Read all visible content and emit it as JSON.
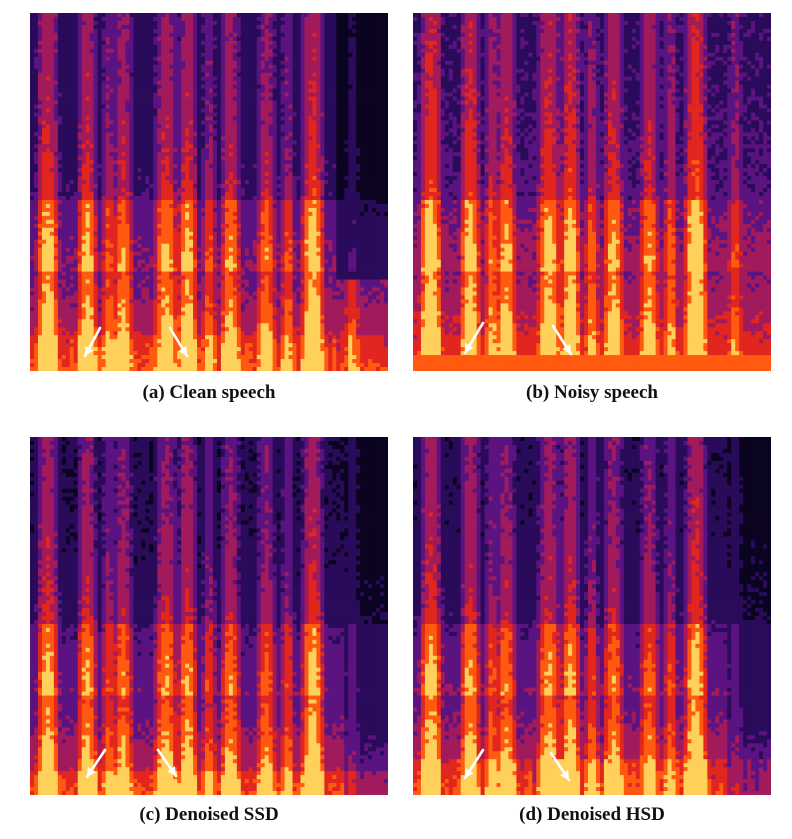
{
  "figure": {
    "panels": [
      {
        "id": "a",
        "caption": "(a) Clean speech",
        "variant": "clean"
      },
      {
        "id": "b",
        "caption": "(b) Noisy speech",
        "variant": "noisy"
      },
      {
        "id": "c",
        "caption": "(c) Denoised SSD",
        "variant": "ssd"
      },
      {
        "id": "d",
        "caption": "(d) Denoised HSD",
        "variant": "hsd"
      }
    ],
    "colormap": [
      "#0b0420",
      "#2a0b5a",
      "#5a1380",
      "#a01a5c",
      "#e0261e",
      "#ff5a10",
      "#ffd15a"
    ],
    "arrow_color": "#ffffff"
  }
}
